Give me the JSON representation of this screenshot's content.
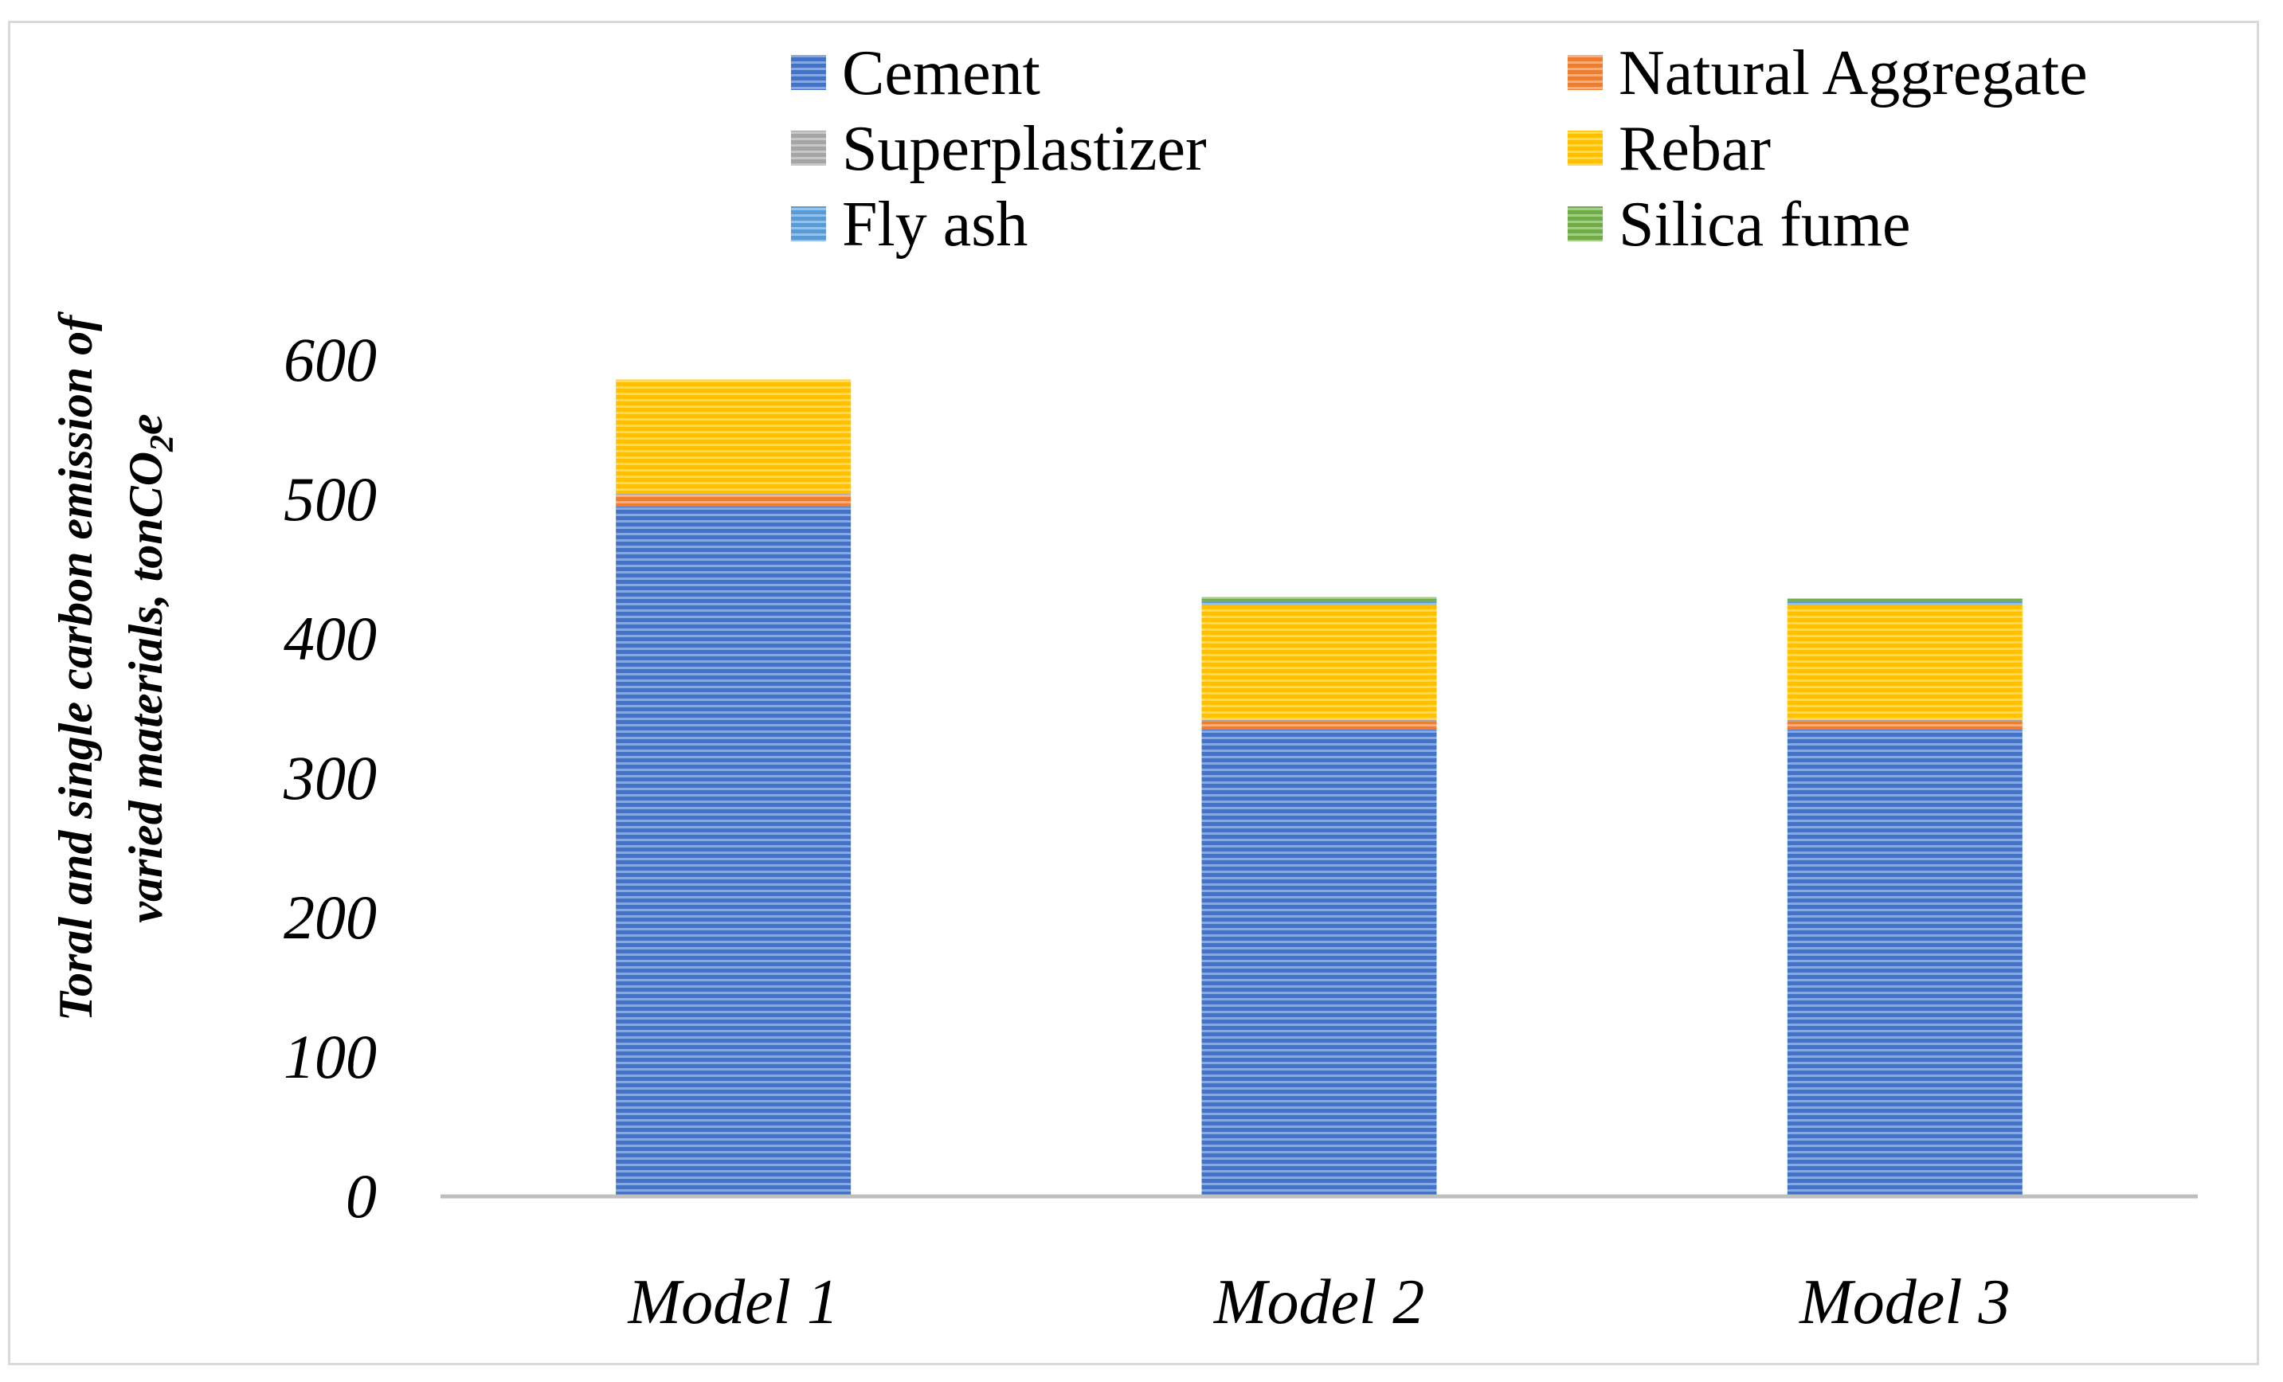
{
  "chart_data": {
    "type": "bar",
    "stacked": true,
    "categories": [
      "Model 1",
      "Model 2",
      "Model 3"
    ],
    "ylabel_line1": "Toral and single carbon emission of",
    "ylabel_line2": "varied materials, tonCO",
    "ylabel_sub": "2",
    "ylabel_tail": "e",
    "ylim": [
      0,
      600
    ],
    "yticks": [
      0,
      100,
      200,
      300,
      400,
      500,
      600
    ],
    "legend_position": "top",
    "series": [
      {
        "name": "Cement",
        "color": "#4472C4",
        "values": [
          495,
          335,
          335
        ]
      },
      {
        "name": "Natural Aggregate",
        "color": "#ED7D31",
        "values": [
          8,
          6,
          6
        ]
      },
      {
        "name": "Superplastizer",
        "color": "#A5A5A5",
        "values": [
          1,
          1,
          1
        ]
      },
      {
        "name": "Rebar",
        "color": "#FFC000",
        "values": [
          82,
          82,
          82
        ]
      },
      {
        "name": "Fly ash",
        "color": "#5B9BD5",
        "values": [
          0,
          3,
          3
        ]
      },
      {
        "name": "Silica fume",
        "color": "#70AD47",
        "values": [
          0,
          3,
          2
        ]
      }
    ]
  }
}
